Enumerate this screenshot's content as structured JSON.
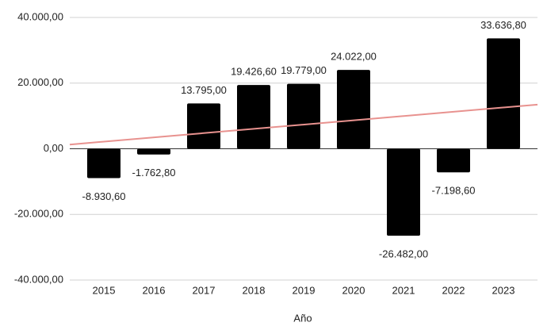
{
  "chart_data": {
    "type": "bar",
    "x_label": "Año",
    "categories": [
      "2015",
      "2016",
      "2017",
      "2018",
      "2019",
      "2020",
      "2021",
      "2022",
      "2023"
    ],
    "values": [
      -8930.6,
      -1762.8,
      13795,
      19426.6,
      19779,
      24022,
      -26482,
      -7198.6,
      33636.8
    ],
    "value_labels": [
      "-8.930,60",
      "-1.762,80",
      "13.795,00",
      "19.426,60",
      "19.779,00",
      "24.022,00",
      "-26.482,00",
      "-7.198,60",
      "33.636,80"
    ],
    "color": "#000000",
    "ylim": [
      -40000,
      40000
    ],
    "yticks": [
      {
        "value": -40000,
        "label": "-40.000,00"
      },
      {
        "value": -20000,
        "label": "-20.000,00"
      },
      {
        "value": 0,
        "label": "0,00"
      },
      {
        "value": 20000,
        "label": "20.000,00"
      },
      {
        "value": 40000,
        "label": "40.000,00"
      }
    ],
    "grid": true,
    "trendline": {
      "type": "linear",
      "color": "#e8928f"
    }
  }
}
